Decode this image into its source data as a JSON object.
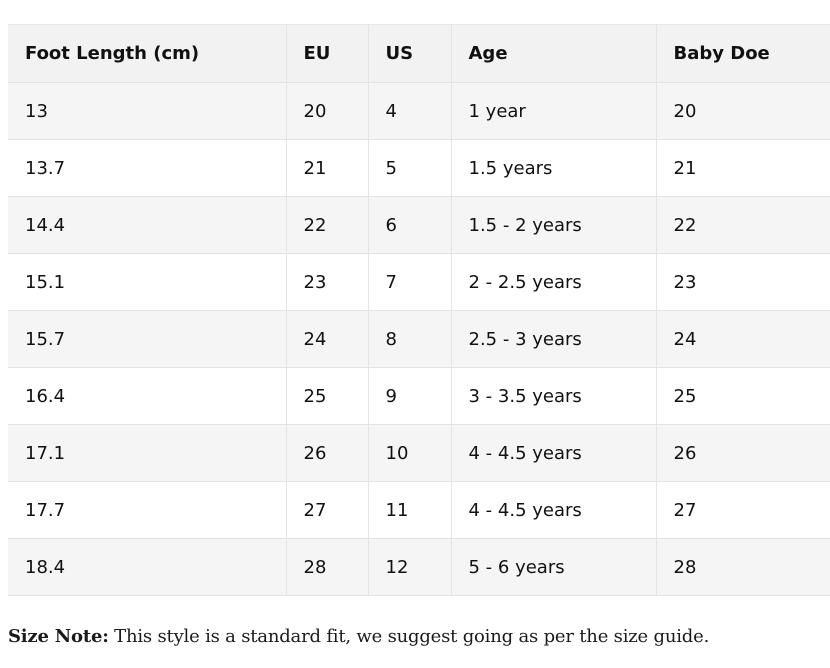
{
  "table": {
    "headers": [
      "Foot Length (cm)",
      "EU",
      "US",
      "Age",
      "Baby Doe"
    ],
    "rows": [
      [
        "13",
        "20",
        "4",
        "1 year",
        "20"
      ],
      [
        "13.7",
        "21",
        "5",
        "1.5 years",
        "21"
      ],
      [
        "14.4",
        "22",
        "6",
        "1.5 - 2 years",
        "22"
      ],
      [
        "15.1",
        "23",
        "7",
        "2 - 2.5 years",
        "23"
      ],
      [
        "15.7",
        "24",
        "8",
        "2.5 - 3 years",
        "24"
      ],
      [
        "16.4",
        "25",
        "9",
        "3 - 3.5 years",
        "25"
      ],
      [
        "17.1",
        "26",
        "10",
        "4 - 4.5 years",
        "26"
      ],
      [
        "17.7",
        "27",
        "11",
        "4 - 4.5 years",
        "27"
      ],
      [
        "18.4",
        "28",
        "12",
        "5 - 6 years",
        "28"
      ]
    ]
  },
  "note": {
    "label": "Size Note:",
    "text": " This style is a standard fit, we suggest going as per the size guide."
  }
}
